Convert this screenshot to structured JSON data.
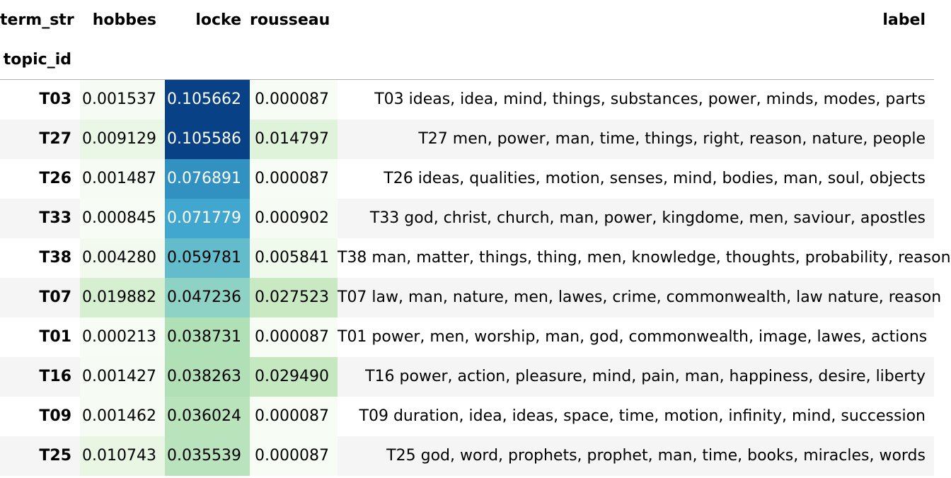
{
  "header": {
    "columns_label": "term_str",
    "index_label": "topic_id",
    "columns": [
      "hobbes",
      "locke",
      "rousseau",
      "label"
    ]
  },
  "rows": [
    {
      "topic_id": "T03",
      "hobbes": "0.001537",
      "locke": "0.105662",
      "rousseau": "0.000087",
      "label": "T03 ideas, idea, mind, things, substances, power, minds, modes, parts",
      "hobbes_bg": "#f6fcf4",
      "locke_bg": "#084185",
      "rousseau_bg": "#f7fcf5",
      "hobbes_fg": "#000000",
      "locke_fg": "#ffffff",
      "rousseau_fg": "#000000"
    },
    {
      "topic_id": "T27",
      "hobbes": "0.009129",
      "locke": "0.105586",
      "rousseau": "0.014797",
      "label": "T27 men, power, man, time, things, right, reason, nature, people",
      "hobbes_bg": "#ebf7e6",
      "locke_bg": "#084185",
      "rousseau_bg": "#dff3da",
      "hobbes_fg": "#000000",
      "locke_fg": "#ffffff",
      "rousseau_fg": "#000000"
    },
    {
      "topic_id": "T26",
      "hobbes": "0.001487",
      "locke": "0.076891",
      "rousseau": "0.000087",
      "label": "T26 ideas, qualities, motion, senses, mind, bodies, man, soul, objects",
      "hobbes_bg": "#f6fcf4",
      "locke_bg": "#3191c1",
      "rousseau_bg": "#f7fcf5",
      "hobbes_fg": "#000000",
      "locke_fg": "#ffffff",
      "rousseau_fg": "#000000"
    },
    {
      "topic_id": "T33",
      "hobbes": "0.000845",
      "locke": "0.071779",
      "rousseau": "0.000902",
      "label": "T33 god, christ, church, man, power, kingdome, men, saviour, apostles",
      "hobbes_bg": "#f7fcf5",
      "locke_bg": "#41a7cf",
      "rousseau_bg": "#f6fbf4",
      "hobbes_fg": "#000000",
      "locke_fg": "#ffffff",
      "rousseau_fg": "#000000"
    },
    {
      "topic_id": "T38",
      "hobbes": "0.004280",
      "locke": "0.059781",
      "rousseau": "0.005841",
      "label": "T38 man, matter, things, thing, men, knowledge, thoughts, probability, reason",
      "hobbes_bg": "#f2faef",
      "locke_bg": "#63bccb",
      "rousseau_bg": "#eff9ec",
      "hobbes_fg": "#000000",
      "locke_fg": "#000000",
      "rousseau_fg": "#000000"
    },
    {
      "topic_id": "T07",
      "hobbes": "0.019882",
      "locke": "0.047236",
      "rousseau": "0.027523",
      "label": "T07 law, man, nature, men, lawes, crime, commonwealth, law nature, reason",
      "hobbes_bg": "#d6efd0",
      "locke_bg": "#8dd2c4",
      "rousseau_bg": "#c8e9c2",
      "hobbes_fg": "#000000",
      "locke_fg": "#000000",
      "rousseau_fg": "#000000"
    },
    {
      "topic_id": "T01",
      "hobbes": "0.000213",
      "locke": "0.038731",
      "rousseau": "0.000087",
      "label": "T01 power, men, worship, man, god, commonwealth, image, lawes, actions",
      "hobbes_bg": "#f7fcf5",
      "locke_bg": "#b0e0b5",
      "rousseau_bg": "#f7fcf5",
      "hobbes_fg": "#000000",
      "locke_fg": "#000000",
      "rousseau_fg": "#000000"
    },
    {
      "topic_id": "T16",
      "hobbes": "0.001427",
      "locke": "0.038263",
      "rousseau": "0.029490",
      "label": "T16 power, action, pleasure, mind, pain, man, happiness, desire, liberty",
      "hobbes_bg": "#f6fcf4",
      "locke_bg": "#b2e0b6",
      "rousseau_bg": "#c6e8c0",
      "hobbes_fg": "#000000",
      "locke_fg": "#000000",
      "rousseau_fg": "#000000"
    },
    {
      "topic_id": "T09",
      "hobbes": "0.001462",
      "locke": "0.036024",
      "rousseau": "0.000087",
      "label": "T09 duration, idea, ideas, space, time, motion, infinity, mind, succession",
      "hobbes_bg": "#f6fcf4",
      "locke_bg": "#b8e3bb",
      "rousseau_bg": "#f7fcf5",
      "hobbes_fg": "#000000",
      "locke_fg": "#000000",
      "rousseau_fg": "#000000"
    },
    {
      "topic_id": "T25",
      "hobbes": "0.010743",
      "locke": "0.035539",
      "rousseau": "0.000087",
      "label": "T25 god, word, prophets, prophet, man, time, books, miracles, words",
      "hobbes_bg": "#e8f6e3",
      "locke_bg": "#b9e3bc",
      "rousseau_bg": "#f7fcf5",
      "hobbes_fg": "#000000",
      "locke_fg": "#000000",
      "rousseau_fg": "#000000"
    }
  ]
}
